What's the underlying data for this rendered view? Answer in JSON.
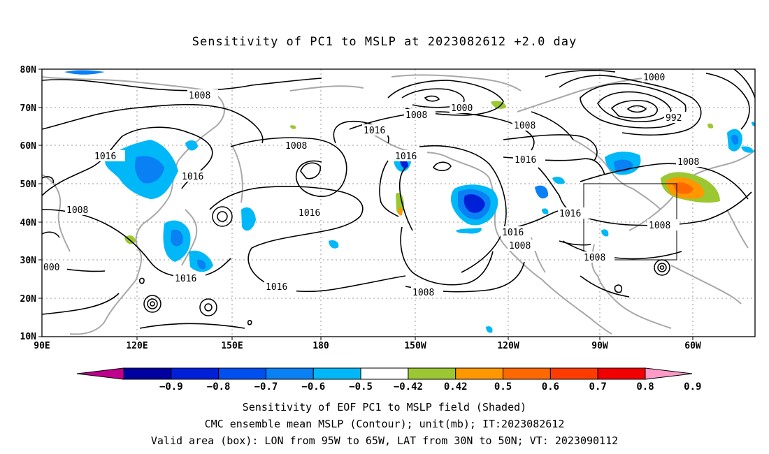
{
  "title": "Sensitivity of PC1 to MSLP at 2023082612 +2.0 day",
  "lat_labels": [
    "80N",
    "70N",
    "60N",
    "50N",
    "40N",
    "30N",
    "20N",
    "10N"
  ],
  "lon_labels": [
    "90E",
    "120E",
    "150E",
    "180",
    "150W",
    "120W",
    "90W",
    "60W"
  ],
  "contour_labels": [
    {
      "text": "1008",
      "id": "c1"
    },
    {
      "text": "1000",
      "id": "c2"
    },
    {
      "text": "1008",
      "id": "c3"
    },
    {
      "text": "1000",
      "id": "c4"
    },
    {
      "text": "992",
      "id": "c5"
    },
    {
      "text": "1008",
      "id": "c6"
    },
    {
      "text": "1016",
      "id": "c7"
    },
    {
      "text": "1008",
      "id": "c8"
    },
    {
      "text": "1016",
      "id": "c9"
    },
    {
      "text": "1016",
      "id": "c10"
    },
    {
      "text": "1016",
      "id": "c11"
    },
    {
      "text": "1016",
      "id": "c12"
    },
    {
      "text": "1008",
      "id": "c13"
    },
    {
      "text": "1008",
      "id": "c14"
    },
    {
      "text": "1016",
      "id": "c15"
    },
    {
      "text": "1016",
      "id": "c16"
    },
    {
      "text": "1008",
      "id": "c17"
    },
    {
      "text": "1016",
      "id": "c18"
    },
    {
      "text": "1008",
      "id": "c19"
    },
    {
      "text": "000",
      "id": "c20"
    },
    {
      "text": "1008",
      "id": "c21"
    },
    {
      "text": "1016",
      "id": "c22"
    },
    {
      "text": "1016",
      "id": "c23"
    },
    {
      "text": "1008",
      "id": "c24"
    }
  ],
  "colorbar": {
    "colors": [
      "#c0008c",
      "#0000a0",
      "#0020d8",
      "#0050f0",
      "#0a80f5",
      "#00b8f8",
      "#ffffff",
      "#9bc832",
      "#ff9800",
      "#ff6a00",
      "#ff3c00",
      "#f00000",
      "#ff9ac8"
    ],
    "labels": [
      "−0.9",
      "−0.8",
      "−0.7",
      "−0.6",
      "−0.5",
      "−0.42",
      "0.42",
      "0.5",
      "0.6",
      "0.7",
      "0.8",
      "0.9"
    ]
  },
  "captions": [
    "Sensitivity of EOF PC1 to MSLP field (Shaded)",
    "CMC ensemble mean MSLP (Contour); unit(mb); IT:2023082612",
    "Valid area (box): LON from 95W to 65W, LAT from 30N to 50N; VT: 2023090112"
  ]
}
